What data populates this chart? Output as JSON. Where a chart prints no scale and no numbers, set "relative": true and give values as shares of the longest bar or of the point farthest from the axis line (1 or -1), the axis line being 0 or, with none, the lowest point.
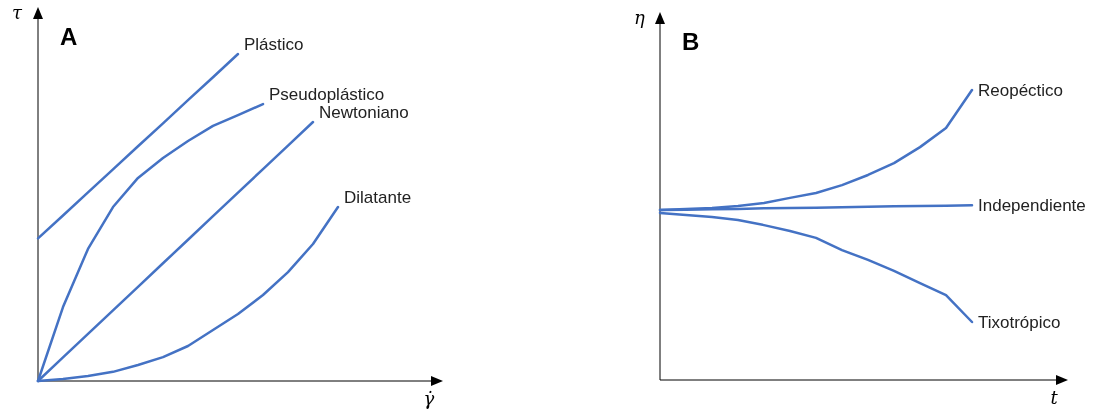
{
  "chart_data": [
    {
      "type": "line",
      "title": "A",
      "xlabel": "γ̇",
      "ylabel": "τ",
      "relative": true,
      "categories": [
        null,
        null,
        null,
        null,
        null,
        null,
        null,
        null,
        null,
        null,
        null,
        null,
        null
      ],
      "series": [
        {
          "name": "Plástico",
          "color": "#4472c4",
          "values": [
            0.436,
            0.506,
            0.577,
            0.647,
            0.718,
            0.788,
            0.859,
            0.929,
            1,
            null,
            null,
            null,
            null
          ]
        },
        {
          "name": "Pseudoplástico",
          "color": "#4472c4",
          "values": [
            0,
            0.226,
            0.404,
            0.532,
            0.621,
            0.682,
            0.734,
            0.78,
            0.813,
            0.847,
            null,
            null,
            null
          ]
        },
        {
          "name": "Newtoniano",
          "color": "#4472c4",
          "values": [
            0,
            0.072,
            0.144,
            0.216,
            0.288,
            0.36,
            0.432,
            0.504,
            0.576,
            0.648,
            0.72,
            0.792,
            null
          ]
        },
        {
          "name": "Dilatante",
          "color": "#4472c4",
          "values": [
            0,
            0.006,
            0.015,
            0.028,
            0.049,
            0.073,
            0.107,
            0.156,
            0.205,
            0.263,
            0.333,
            0.419,
            0.532
          ]
        }
      ]
    },
    {
      "type": "line",
      "title": "B",
      "xlabel": "t",
      "ylabel": "η",
      "relative": true,
      "categories": [
        null,
        null,
        null,
        null,
        null,
        null,
        null,
        null,
        null,
        null,
        null,
        null,
        null
      ],
      "series": [
        {
          "name": "Reopéctico",
          "color": "#4472c4",
          "values": [
            0.586,
            0.59,
            0.593,
            0.6,
            0.61,
            0.628,
            0.645,
            0.672,
            0.707,
            0.748,
            0.803,
            0.869,
            1
          ]
        },
        {
          "name": "Independiente",
          "color": "#4472c4",
          "values": [
            0.586,
            0.587,
            0.589,
            0.59,
            0.592,
            0.593,
            0.594,
            0.596,
            0.597,
            0.599,
            0.6,
            0.601,
            0.603
          ]
        },
        {
          "name": "Tixotrópico",
          "color": "#4472c4",
          "values": [
            0.576,
            0.569,
            0.562,
            0.552,
            0.534,
            0.514,
            0.49,
            0.448,
            0.414,
            0.376,
            0.334,
            0.293,
            0.2
          ]
        }
      ]
    }
  ]
}
